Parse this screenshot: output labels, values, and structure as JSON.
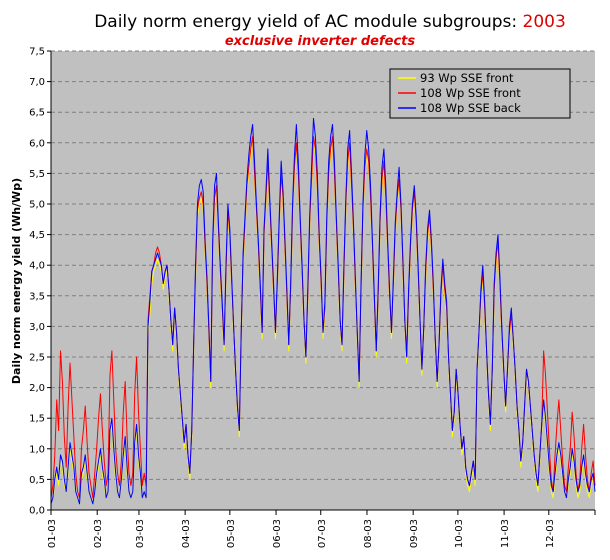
{
  "chart_data": {
    "type": "line",
    "title": "Daily norm energy yield of AC module subgroups: ",
    "title_year": "2003",
    "subtitle": "exclusive inverter defects",
    "ylabel": "Daily norm energy yield (Wh/Wp)",
    "xlabel": "",
    "ylim": [
      0,
      7.5
    ],
    "y_ticks": [
      "0,0",
      "0,5",
      "1,0",
      "1,5",
      "2,0",
      "2,5",
      "3,0",
      "3,5",
      "4,0",
      "4,5",
      "5,0",
      "5,5",
      "6,0",
      "6,5",
      "7,0",
      "7,5"
    ],
    "x_tick_labels": [
      "01-03",
      "02-03",
      "03-03",
      "04-03",
      "05-03",
      "06-03",
      "07-03",
      "08-03",
      "09-03",
      "10-03",
      "11-03",
      "12-03"
    ],
    "x_unit": "day of year 2003",
    "grid": true,
    "legend_position": "top-right",
    "colors": {
      "plot_bg": "#c0c0c0",
      "grid": "#7f7f7f"
    },
    "series": [
      {
        "name": "93 Wp SSE front",
        "color": "#ffff00",
        "values": [
          0.1,
          0.2,
          0.4,
          0.6,
          0.4,
          0.8,
          0.7,
          0.4,
          0.3,
          0.6,
          1.0,
          0.8,
          0.6,
          0.3,
          0.2,
          0.1,
          0.5,
          0.6,
          0.8,
          0.5,
          0.3,
          0.2,
          0.1,
          0.3,
          0.5,
          0.7,
          0.9,
          0.6,
          0.4,
          0.2,
          0.3,
          1.2,
          1.4,
          0.9,
          0.5,
          0.3,
          0.2,
          0.4,
          0.8,
          1.1,
          0.6,
          0.3,
          0.2,
          0.3,
          1.0,
          1.3,
          0.8,
          0.5,
          0.2,
          0.3,
          0.2,
          2.8,
          3.2,
          3.7,
          3.9,
          4.0,
          4.1,
          4.0,
          3.9,
          3.6,
          3.8,
          3.9,
          3.5,
          3.0,
          2.6,
          3.2,
          2.8,
          2.2,
          1.8,
          1.4,
          1.0,
          1.3,
          0.8,
          0.5,
          1.2,
          2.6,
          3.8,
          4.8,
          5.0,
          5.1,
          4.9,
          4.2,
          3.6,
          2.8,
          2.0,
          4.2,
          5.0,
          5.2,
          4.5,
          3.8,
          3.2,
          2.6,
          3.8,
          4.8,
          4.4,
          3.6,
          2.9,
          2.2,
          1.6,
          1.2,
          2.8,
          4.0,
          4.6,
          5.2,
          5.5,
          5.8,
          6.0,
          5.4,
          4.8,
          4.2,
          3.5,
          2.8,
          4.4,
          5.0,
          5.6,
          4.9,
          4.2,
          3.5,
          2.8,
          3.6,
          4.6,
          5.4,
          5.0,
          4.2,
          3.4,
          2.6,
          3.5,
          4.8,
          5.5,
          5.9,
          5.4,
          4.6,
          3.8,
          3.0,
          2.4,
          3.4,
          4.6,
          5.3,
          6.0,
          5.8,
          5.2,
          4.3,
          3.6,
          2.8,
          3.2,
          4.6,
          5.4,
          5.8,
          6.0,
          5.4,
          4.6,
          3.8,
          3.0,
          2.6,
          3.8,
          4.9,
          5.6,
          5.9,
          5.2,
          4.5,
          3.6,
          2.8,
          2.0,
          3.5,
          4.8,
          5.5,
          5.8,
          5.6,
          5.0,
          4.2,
          3.3,
          2.5,
          3.4,
          4.6,
          5.3,
          5.6,
          5.0,
          4.2,
          3.4,
          2.8,
          3.6,
          4.5,
          5.0,
          5.3,
          4.8,
          3.9,
          3.0,
          2.4,
          3.4,
          4.2,
          4.8,
          5.1,
          4.6,
          3.8,
          3.0,
          2.2,
          2.9,
          3.8,
          4.4,
          4.7,
          4.2,
          3.5,
          2.7,
          2.0,
          2.6,
          3.4,
          3.9,
          3.5,
          3.2,
          2.4,
          1.8,
          1.2,
          1.5,
          2.2,
          1.8,
          1.3,
          0.9,
          1.1,
          0.6,
          0.4,
          0.3,
          0.5,
          0.7,
          0.4,
          2.2,
          2.8,
          3.4,
          3.8,
          3.2,
          2.5,
          1.8,
          1.3,
          2.2,
          3.5,
          4.0,
          4.3,
          3.6,
          2.8,
          2.2,
          1.6,
          2.2,
          2.8,
          3.2,
          2.7,
          2.2,
          1.6,
          1.2,
          0.7,
          1.0,
          1.6,
          2.2,
          2.0,
          1.6,
          1.2,
          0.8,
          0.5,
          0.3,
          0.8,
          1.3,
          1.7,
          1.4,
          1.0,
          0.6,
          0.3,
          0.2,
          0.5,
          0.8,
          1.0,
          0.8,
          0.5,
          0.3,
          0.2,
          0.4,
          0.6,
          0.9,
          0.7,
          0.4,
          0.2,
          0.3,
          0.6,
          0.8,
          0.5,
          0.3,
          0.2,
          0.4,
          0.5,
          0.3
        ]
      },
      {
        "name": "108 Wp SSE front",
        "color": "#ff0000",
        "values": [
          0.2,
          0.4,
          0.9,
          1.8,
          1.3,
          2.6,
          2.1,
          1.2,
          0.7,
          1.7,
          2.4,
          1.8,
          1.2,
          0.6,
          0.3,
          0.2,
          1.0,
          1.3,
          1.7,
          1.1,
          0.6,
          0.4,
          0.2,
          0.6,
          1.0,
          1.5,
          1.9,
          1.3,
          0.8,
          0.4,
          0.6,
          2.2,
          2.6,
          1.8,
          1.0,
          0.6,
          0.4,
          0.8,
          1.6,
          2.1,
          1.2,
          0.6,
          0.4,
          0.6,
          1.9,
          2.5,
          1.6,
          1.0,
          0.4,
          0.6,
          0.4,
          3.1,
          3.5,
          3.9,
          4.0,
          4.2,
          4.3,
          4.2,
          4.0,
          3.7,
          3.9,
          4.0,
          3.6,
          3.1,
          2.7,
          3.3,
          2.9,
          2.3,
          1.9,
          1.5,
          1.1,
          1.4,
          0.9,
          0.6,
          1.3,
          2.7,
          3.9,
          4.9,
          5.1,
          5.2,
          5.0,
          4.3,
          3.7,
          2.9,
          2.1,
          4.3,
          5.1,
          5.3,
          4.6,
          3.9,
          3.3,
          2.7,
          3.9,
          4.9,
          4.5,
          3.7,
          3.0,
          2.3,
          1.7,
          1.3,
          2.9,
          4.1,
          4.7,
          5.3,
          5.6,
          5.9,
          6.1,
          5.5,
          4.9,
          4.3,
          3.6,
          2.9,
          4.5,
          5.1,
          5.7,
          5.0,
          4.3,
          3.6,
          2.9,
          3.7,
          4.7,
          5.5,
          5.1,
          4.3,
          3.5,
          2.7,
          3.6,
          4.9,
          5.6,
          6.0,
          5.5,
          4.7,
          3.9,
          3.1,
          2.5,
          3.5,
          4.7,
          5.4,
          6.1,
          5.9,
          5.3,
          4.4,
          3.7,
          2.9,
          3.3,
          4.7,
          5.5,
          5.9,
          6.1,
          5.5,
          4.7,
          3.9,
          3.1,
          2.7,
          3.9,
          5.0,
          5.7,
          6.0,
          5.3,
          4.6,
          3.7,
          2.9,
          2.1,
          3.6,
          4.9,
          5.6,
          5.9,
          5.7,
          5.1,
          4.3,
          3.4,
          2.6,
          3.5,
          4.7,
          5.4,
          5.7,
          5.1,
          4.3,
          3.5,
          2.9,
          3.7,
          4.6,
          5.1,
          5.4,
          4.9,
          4.0,
          3.1,
          2.5,
          3.5,
          4.3,
          4.9,
          5.2,
          4.7,
          3.9,
          3.1,
          2.3,
          3.0,
          3.9,
          4.5,
          4.8,
          4.3,
          3.6,
          2.8,
          2.1,
          2.7,
          3.5,
          4.0,
          3.6,
          3.3,
          2.5,
          1.9,
          1.3,
          1.6,
          2.3,
          1.9,
          1.4,
          1.0,
          1.2,
          0.7,
          0.5,
          0.4,
          0.6,
          0.8,
          0.5,
          2.3,
          2.9,
          3.5,
          3.9,
          3.3,
          2.6,
          1.9,
          1.4,
          2.3,
          3.6,
          4.1,
          4.4,
          3.7,
          2.9,
          2.3,
          1.7,
          2.3,
          2.9,
          3.2,
          2.8,
          2.3,
          1.7,
          1.3,
          0.8,
          1.1,
          1.7,
          2.3,
          2.1,
          1.7,
          1.3,
          0.9,
          0.6,
          0.4,
          0.9,
          1.4,
          2.6,
          2.2,
          1.6,
          1.0,
          0.5,
          0.3,
          0.9,
          1.4,
          1.8,
          1.3,
          0.8,
          0.4,
          0.3,
          0.7,
          1.0,
          1.6,
          1.2,
          0.6,
          0.3,
          0.5,
          1.0,
          1.4,
          0.9,
          0.5,
          0.3,
          0.6,
          0.8,
          0.4
        ]
      },
      {
        "name": "108 Wp SSE back",
        "color": "#0000ff",
        "values": [
          0.1,
          0.2,
          0.5,
          0.7,
          0.5,
          0.9,
          0.8,
          0.5,
          0.3,
          0.7,
          1.1,
          0.9,
          0.7,
          0.3,
          0.2,
          0.1,
          0.6,
          0.7,
          0.9,
          0.6,
          0.3,
          0.2,
          0.1,
          0.3,
          0.6,
          0.8,
          1.0,
          0.7,
          0.5,
          0.2,
          0.3,
          1.3,
          1.5,
          1.0,
          0.6,
          0.3,
          0.2,
          0.5,
          0.9,
          1.2,
          0.7,
          0.3,
          0.2,
          0.3,
          1.1,
          1.4,
          0.9,
          0.6,
          0.2,
          0.3,
          0.2,
          3.0,
          3.4,
          3.9,
          4.0,
          4.1,
          4.2,
          4.1,
          4.0,
          3.7,
          3.9,
          4.0,
          3.6,
          3.1,
          2.7,
          3.3,
          2.9,
          2.3,
          1.9,
          1.5,
          1.1,
          1.4,
          0.9,
          0.6,
          1.3,
          2.7,
          4.0,
          5.0,
          5.3,
          5.4,
          5.2,
          4.4,
          3.8,
          3.0,
          2.1,
          4.4,
          5.3,
          5.5,
          4.7,
          4.0,
          3.4,
          2.7,
          4.0,
          5.0,
          4.6,
          3.8,
          3.0,
          2.3,
          1.7,
          1.3,
          2.9,
          4.2,
          4.8,
          5.4,
          5.8,
          6.1,
          6.3,
          5.7,
          5.0,
          4.4,
          3.7,
          2.9,
          4.6,
          5.2,
          5.9,
          5.1,
          4.4,
          3.7,
          2.9,
          3.8,
          4.8,
          5.7,
          5.2,
          4.4,
          3.6,
          2.7,
          3.7,
          5.0,
          5.8,
          6.3,
          5.7,
          4.8,
          4.0,
          3.1,
          2.5,
          3.6,
          4.8,
          5.6,
          6.4,
          6.1,
          5.5,
          4.5,
          3.8,
          2.9,
          3.4,
          4.8,
          5.7,
          6.1,
          6.3,
          5.7,
          4.8,
          4.0,
          3.1,
          2.7,
          4.0,
          5.1,
          5.9,
          6.2,
          5.5,
          4.7,
          3.8,
          2.9,
          2.1,
          3.7,
          5.0,
          5.8,
          6.2,
          5.9,
          5.3,
          4.4,
          3.5,
          2.6,
          3.6,
          4.8,
          5.6,
          5.9,
          5.3,
          4.4,
          3.6,
          2.9,
          3.8,
          4.7,
          5.2,
          5.6,
          5.0,
          4.1,
          3.1,
          2.5,
          3.6,
          4.4,
          5.0,
          5.3,
          4.8,
          4.0,
          3.1,
          2.3,
          3.0,
          4.0,
          4.6,
          4.9,
          4.4,
          3.7,
          2.8,
          2.1,
          2.7,
          3.6,
          4.1,
          3.7,
          3.4,
          2.5,
          1.9,
          1.3,
          1.6,
          2.3,
          1.9,
          1.4,
          1.0,
          1.2,
          0.7,
          0.5,
          0.4,
          0.6,
          0.8,
          0.5,
          2.3,
          2.9,
          3.6,
          4.0,
          3.4,
          2.6,
          1.9,
          1.4,
          2.3,
          3.7,
          4.2,
          4.5,
          3.8,
          3.0,
          2.3,
          1.7,
          2.3,
          3.0,
          3.3,
          2.8,
          2.3,
          1.7,
          1.3,
          0.8,
          1.1,
          1.7,
          2.3,
          2.1,
          1.7,
          1.3,
          0.9,
          0.6,
          0.4,
          0.9,
          1.4,
          1.8,
          1.5,
          1.1,
          0.7,
          0.4,
          0.3,
          0.6,
          0.9,
          1.1,
          0.9,
          0.6,
          0.3,
          0.2,
          0.5,
          0.7,
          1.0,
          0.8,
          0.5,
          0.3,
          0.4,
          0.7,
          0.9,
          0.6,
          0.4,
          0.3,
          0.5,
          0.6,
          0.3
        ]
      }
    ]
  }
}
